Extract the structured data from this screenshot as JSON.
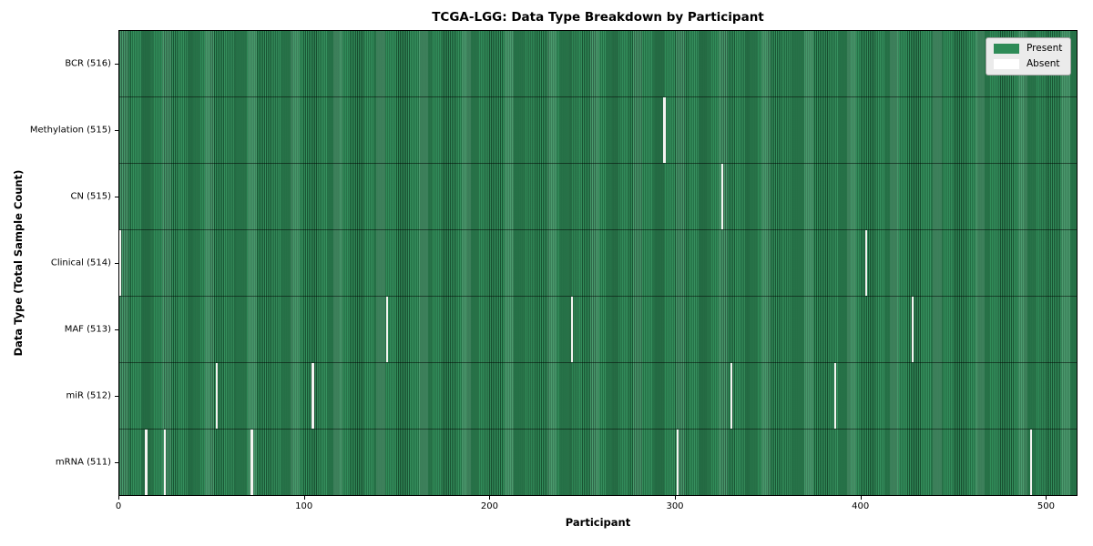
{
  "title": "TCGA-LGG: Data Type Breakdown by Participant",
  "x_axis": {
    "label": "Participant"
  },
  "y_axis": {
    "label": "Data Type (Total Sample Count)"
  },
  "colors": {
    "present": "#2e8b57",
    "present_edge_dark": "#1c5434",
    "absent": "#f4f4f1",
    "plot_border": "#000000",
    "legend_background": "#ebebeb"
  },
  "chart_data": {
    "type": "heatmap",
    "title": "TCGA-LGG: Data Type Breakdown by Participant",
    "xlabel": "Participant",
    "ylabel": "Data Type (Total Sample Count)",
    "total_participants": 516,
    "axis_max": 517,
    "x_ticks": [
      0,
      100,
      200,
      300,
      400,
      500
    ],
    "grid": false,
    "legend_position": "upper right",
    "legend": [
      {
        "label": "Present",
        "color": "#2e8b57"
      },
      {
        "label": "Absent",
        "color": "#ffffff"
      }
    ],
    "rows": [
      {
        "label": "BCR (516)",
        "data_type": "BCR",
        "present_count": 516,
        "absent_participants": []
      },
      {
        "label": "Methylation (515)",
        "data_type": "Methylation",
        "present_count": 515,
        "absent_participants": [
          294
        ]
      },
      {
        "label": "CN (515)",
        "data_type": "CN",
        "present_count": 515,
        "absent_participants": [
          325
        ]
      },
      {
        "label": "Clinical (514)",
        "data_type": "Clinical",
        "present_count": 514,
        "absent_participants": [
          0,
          403
        ]
      },
      {
        "label": "MAF (513)",
        "data_type": "MAF",
        "present_count": 513,
        "absent_participants": [
          144,
          244,
          428
        ]
      },
      {
        "label": "miR (512)",
        "data_type": "miR",
        "present_count": 512,
        "absent_participants": [
          52,
          104,
          330,
          386
        ]
      },
      {
        "label": "mRNA (511)",
        "data_type": "mRNA",
        "present_count": 511,
        "absent_participants": [
          14,
          24,
          71,
          301,
          492
        ]
      }
    ]
  }
}
